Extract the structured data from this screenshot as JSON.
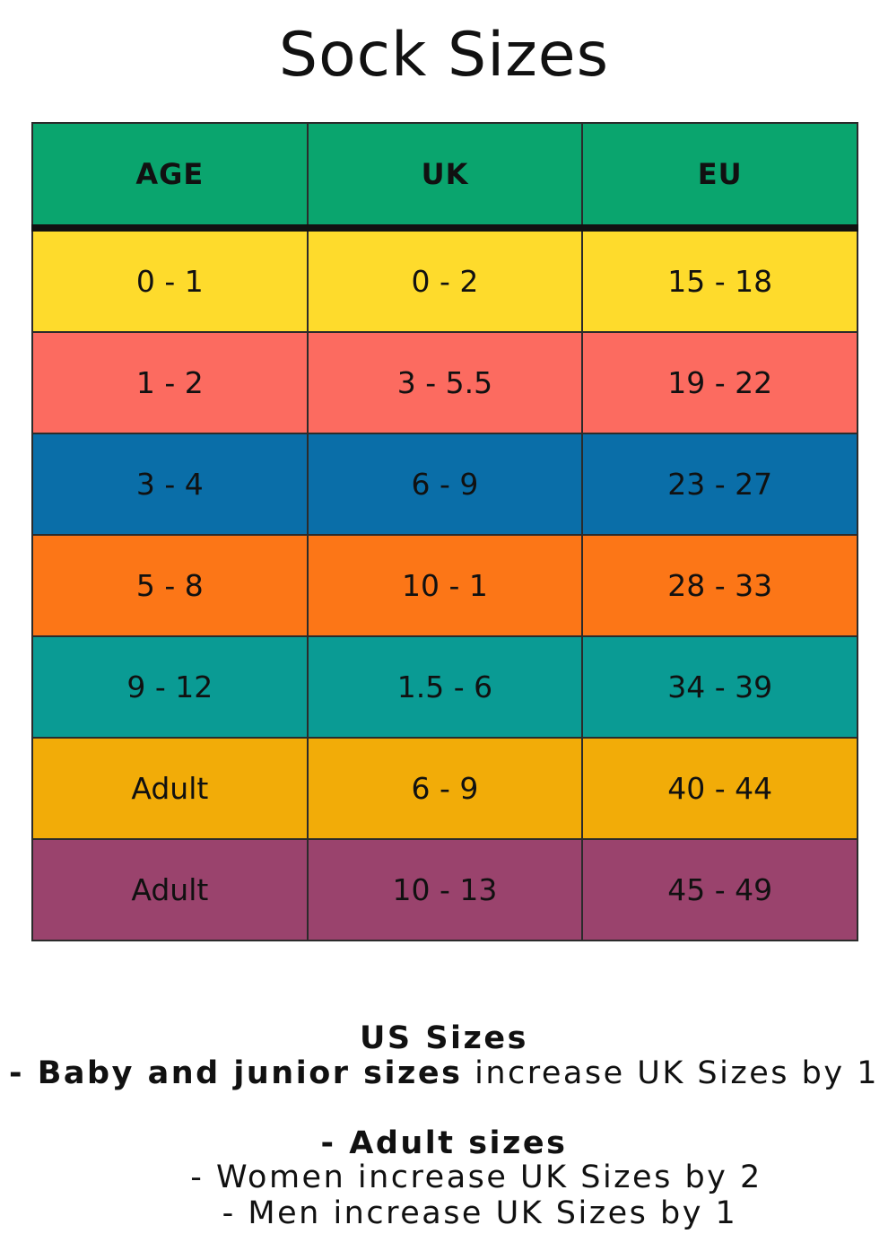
{
  "title": "Sock Sizes",
  "table": {
    "headers": [
      "AGE",
      "UK",
      "EU"
    ],
    "header_color": "#0aa56e",
    "rows": [
      {
        "age": "0 - 1",
        "uk": "0 - 2",
        "eu": "15 - 18",
        "color": "#fedb2c"
      },
      {
        "age": "1 - 2",
        "uk": "3 - 5.5",
        "eu": "19 - 22",
        "color": "#fc6b60"
      },
      {
        "age": "3 - 4",
        "uk": "6 - 9",
        "eu": "23 - 27",
        "color": "#0a6ea8"
      },
      {
        "age": "5 - 8",
        "uk": "10 - 1",
        "eu": "28 - 33",
        "color": "#fc7617"
      },
      {
        "age": "9 - 12",
        "uk": "1.5 - 6",
        "eu": "34 - 39",
        "color": "#0a9b94"
      },
      {
        "age": "Adult",
        "uk": "6 - 9",
        "eu": "40 - 44",
        "color": "#f2ac08"
      },
      {
        "age": "Adult",
        "uk": "10 - 13",
        "eu": "45 - 49",
        "color": "#9a436d"
      }
    ]
  },
  "notes": {
    "us_heading": "US Sizes",
    "baby_bold": "- Baby and junior sizes",
    "baby_rest": " increase UK Sizes by 1",
    "adult_heading": "- Adult sizes",
    "women": "- Women increase UK Sizes by 2",
    "men": "- Men increase UK Sizes by 1"
  }
}
